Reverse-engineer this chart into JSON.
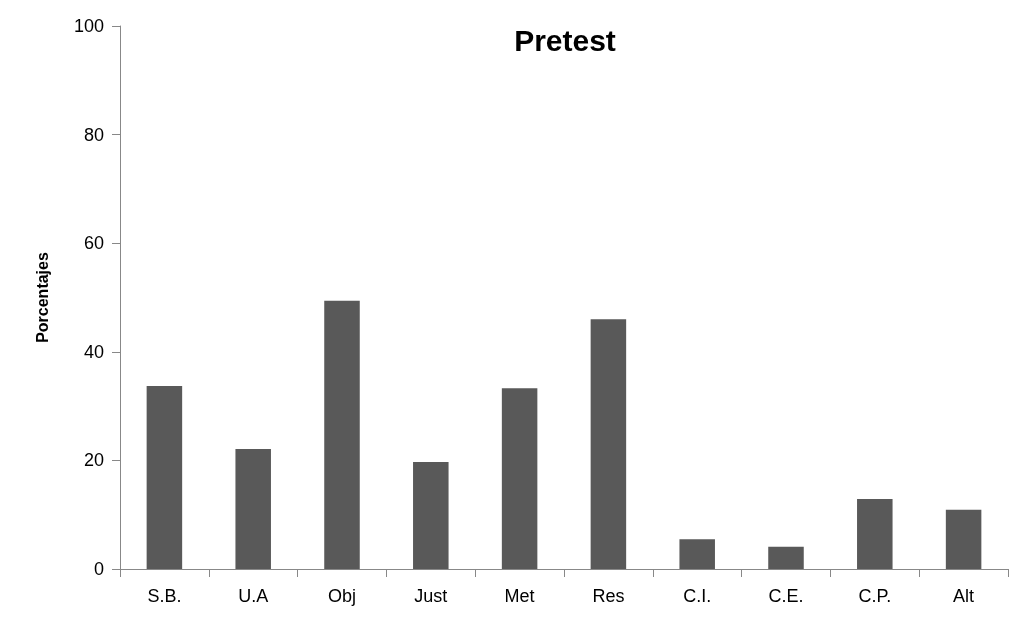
{
  "chart_data": {
    "type": "bar",
    "title": "Pretest",
    "ylabel": "Porcentajes",
    "categories": [
      "S.B.",
      "U.A",
      "Obj",
      "Just",
      "Met",
      "Res",
      "C.I.",
      "C.E.",
      "C.P.",
      "Alt"
    ],
    "values": [
      33.7,
      22.1,
      49.4,
      19.7,
      33.3,
      46.0,
      5.5,
      4.1,
      12.9,
      10.9
    ],
    "color": "#595959",
    "ylim": [
      0,
      100
    ],
    "yticks": [
      0,
      20,
      40,
      60,
      80,
      100
    ],
    "grid": false
  }
}
